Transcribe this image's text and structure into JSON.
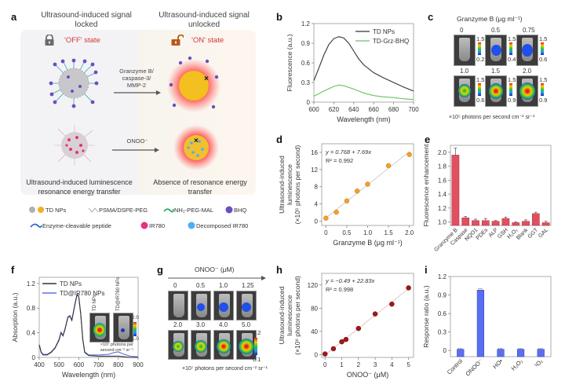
{
  "panel_labels": [
    "a",
    "b",
    "c",
    "d",
    "e",
    "f",
    "g",
    "h",
    "i"
  ],
  "panel_a": {
    "head_left": "Ultrasound-induced signal locked",
    "head_right": "Ultrasound-induced signal unlocked",
    "off_state": "'OFF' state",
    "on_state": "'ON' state",
    "arrow1_label": "Granzyme B/ caspase-3/ MMP-2",
    "arrow2_label": "ONOO⁻",
    "caption_left": "Ultrasound-induced luminescence resonance energy transfer",
    "caption_right": "Absence of resonance energy transfer",
    "legend": [
      {
        "icon": "td-np-icon",
        "label": "TD NPs"
      },
      {
        "icon": "psma-icon",
        "label": "PSMA/DSPE-PEG"
      },
      {
        "icon": "nh2-peg-icon",
        "label": "NH₂-PEG-MAL"
      },
      {
        "icon": "bhq-icon",
        "label": "BHQ"
      },
      {
        "icon": "peptide-icon",
        "label": "Enzyme-cleavable peptide"
      },
      {
        "icon": "ir780-icon",
        "label": "IR780"
      },
      {
        "icon": "decomposed-ir780-icon",
        "label": "Decomposed IR780"
      }
    ],
    "colors": {
      "state": "#d0393b",
      "td_gray": "#b0b0b0",
      "td_gold": "#f0b020",
      "bhq": "#6a4fc0",
      "ir780": "#e83080",
      "decomposed": "#4ab0f0"
    }
  },
  "panel_c": {
    "title": "Granzyme B (μg ml⁻¹)",
    "tubes": [
      {
        "conc": "0",
        "max": "1.5",
        "min": "0.2",
        "signal": 0
      },
      {
        "conc": "0.5",
        "max": "1.5",
        "min": "0.4",
        "signal": 0.3
      },
      {
        "conc": "0.75",
        "max": "1.5",
        "min": "0.6",
        "signal": 0.45
      },
      {
        "conc": "1.0",
        "max": "1.5",
        "min": "0.6",
        "signal": 0.55
      },
      {
        "conc": "1.5",
        "max": "1.5",
        "min": "0.9",
        "signal": 0.75
      },
      {
        "conc": "2.0",
        "max": "1.5",
        "min": "0.9",
        "signal": 1.0
      }
    ],
    "unit": "×10⁵ photons per second cm⁻² sr⁻¹"
  },
  "panel_g": {
    "title": "ONOO⁻ (μM)",
    "tubes": [
      {
        "conc": "0",
        "signal": 0
      },
      {
        "conc": "0.5",
        "signal": 0.2
      },
      {
        "conc": "1.0",
        "signal": 0.35
      },
      {
        "conc": "1.25",
        "signal": 0.4
      },
      {
        "conc": "2.0",
        "signal": 0.55
      },
      {
        "conc": "3.0",
        "signal": 0.7
      },
      {
        "conc": "4.0",
        "signal": 0.85
      },
      {
        "conc": "5.0",
        "signal": 1.0
      }
    ],
    "scale_max": "1.2",
    "scale_min": "0.1",
    "unit": "×10⁷ photons per second cm⁻² sr⁻¹"
  },
  "chart_data": [
    {
      "id": "b",
      "type": "line",
      "title": "",
      "xlabel": "Wavelength (nm)",
      "ylabel": "Fluorescence (a.u.)",
      "xlim": [
        600,
        700
      ],
      "ylim": [
        0,
        1.2
      ],
      "xticks": [
        600,
        620,
        640,
        660,
        680,
        700
      ],
      "yticks": [
        0,
        0.3,
        0.6,
        0.9,
        1.2
      ],
      "legend_position": "top-right",
      "series": [
        {
          "name": "TD NPs",
          "color": "#333333",
          "x": [
            600,
            605,
            610,
            615,
            620,
            625,
            630,
            635,
            640,
            645,
            650,
            660,
            670,
            680,
            690,
            700
          ],
          "y": [
            0.33,
            0.52,
            0.72,
            0.88,
            0.97,
            1.0,
            0.98,
            0.9,
            0.78,
            0.66,
            0.57,
            0.45,
            0.37,
            0.3,
            0.23,
            0.17
          ]
        },
        {
          "name": "TD-Grz-BHQ",
          "color": "#6cc060",
          "x": [
            600,
            610,
            620,
            625,
            630,
            640,
            650,
            660,
            670,
            680,
            690,
            700
          ],
          "y": [
            0.09,
            0.17,
            0.24,
            0.26,
            0.25,
            0.2,
            0.14,
            0.1,
            0.08,
            0.07,
            0.05,
            0.04
          ]
        }
      ]
    },
    {
      "id": "d",
      "type": "scatter",
      "xlabel": "Granzyme B (μg ml⁻¹)",
      "ylabel": "Ultrasound-induced luminescence (×10⁵ photons per second)",
      "xlim": [
        -0.1,
        2.1
      ],
      "ylim": [
        -1,
        18
      ],
      "xticks": [
        0,
        0.5,
        1.0,
        1.5,
        2.0
      ],
      "xtick_labels": [
        "0",
        "0.5",
        "1.0",
        "1.5",
        "2.0"
      ],
      "yticks": [
        0,
        4,
        8,
        12,
        16
      ],
      "annotation_eq": "y = 0.768 + 7.69x",
      "annotation_r2": "R² = 0.992",
      "fit": {
        "intercept": 0.768,
        "slope": 7.69
      },
      "color": "#f0a030",
      "x": [
        0,
        0.25,
        0.5,
        0.75,
        1.0,
        1.5,
        2.0
      ],
      "y": [
        0.7,
        2.1,
        4.7,
        7.0,
        8.6,
        12.9,
        15.5
      ]
    },
    {
      "id": "e",
      "type": "bar",
      "ylabel": "Fluorescence enhancement",
      "ylim": [
        0.95,
        2.1
      ],
      "yticks": [
        1.0,
        1.2,
        1.4,
        1.6,
        1.8,
        2.0
      ],
      "ytick_labels": [
        "1.0",
        "1.2",
        "1.4",
        "1.6",
        "1.8",
        "2.0"
      ],
      "color": "#e05060",
      "categories": [
        "Granzyme B",
        "Caspase",
        "NQO1",
        "PDEs",
        "ALP",
        "GSH",
        "H₂O₂",
        "Blank",
        "GGT",
        "GAL"
      ],
      "values": [
        1.96,
        1.06,
        1.02,
        1.02,
        1.01,
        1.05,
        0.99,
        1.01,
        1.12,
        0.99
      ],
      "errors": [
        0.1,
        0.02,
        0.02,
        0.03,
        0.01,
        0.02,
        0.01,
        0.02,
        0.02,
        0.02
      ]
    },
    {
      "id": "f",
      "type": "line",
      "xlabel": "Wavelength (nm)",
      "ylabel": "Absorption (a.u.)",
      "xlim": [
        400,
        900
      ],
      "ylim": [
        0,
        1.3
      ],
      "xticks": [
        400,
        500,
        600,
        700,
        800,
        900
      ],
      "yticks": [
        0,
        0.4,
        0.8,
        1.2
      ],
      "legend_position": "top-left",
      "inset": {
        "labels": [
          "TD NPs",
          "TD@IR780 NPs"
        ],
        "scale_max": "2.0",
        "scale_min": "1.0",
        "unit": "×10⁵ photons per second cm⁻² sr⁻¹"
      },
      "series": [
        {
          "name": "TD NPs",
          "color": "#333333",
          "x": [
            400,
            410,
            420,
            440,
            460,
            480,
            500,
            510,
            520,
            530,
            545,
            555,
            565,
            580,
            590,
            595,
            600,
            610,
            620,
            630,
            650,
            700,
            750,
            780,
            800,
            830,
            860,
            900
          ],
          "y": [
            0.2,
            0.08,
            0.04,
            0.04,
            0.08,
            0.15,
            0.28,
            0.4,
            0.35,
            0.45,
            0.65,
            0.67,
            0.6,
            0.85,
            1.0,
            1.02,
            0.98,
            0.7,
            0.3,
            0.08,
            0.03,
            0.02,
            0.02,
            0.02,
            0.02,
            0.01,
            0.0,
            0.0
          ]
        },
        {
          "name": "TD@IR780 NPs",
          "color": "#6070e0",
          "x": [
            400,
            410,
            420,
            440,
            460,
            480,
            500,
            510,
            520,
            530,
            545,
            555,
            565,
            580,
            590,
            595,
            600,
            610,
            620,
            630,
            650,
            700,
            750,
            780,
            800,
            830,
            860,
            900
          ],
          "y": [
            0.21,
            0.09,
            0.05,
            0.05,
            0.09,
            0.16,
            0.29,
            0.41,
            0.36,
            0.46,
            0.66,
            0.68,
            0.61,
            0.86,
            1.01,
            1.02,
            0.98,
            0.7,
            0.3,
            0.09,
            0.04,
            0.04,
            0.05,
            0.08,
            0.09,
            0.05,
            0.02,
            0.01
          ]
        }
      ]
    },
    {
      "id": "h",
      "type": "scatter",
      "xlabel": "ONOO⁻ (μM)",
      "ylabel": "Ultrasound-induced luminescence (×10⁶ photons per second)",
      "xlim": [
        -0.2,
        5.3
      ],
      "ylim": [
        -5,
        140
      ],
      "xticks": [
        0,
        1,
        2,
        3,
        4,
        5
      ],
      "yticks": [
        0,
        40,
        80,
        120
      ],
      "annotation_eq": "y = −0.49 + 22.83x",
      "annotation_r2": "R² = 0.998",
      "fit": {
        "intercept": -0.49,
        "slope": 22.83
      },
      "color": "#a01820",
      "x": [
        0,
        0.5,
        1.0,
        1.25,
        2.0,
        3.0,
        4.0,
        5.0
      ],
      "y": [
        1,
        10,
        22,
        26,
        45,
        70,
        87,
        115
      ]
    },
    {
      "id": "i",
      "type": "bar",
      "ylabel": "Response ratio (a.u.)",
      "ylim": [
        -0.1,
        1.2
      ],
      "yticks": [
        0,
        0.3,
        0.6,
        0.9,
        1.2
      ],
      "color": "#5a6ff0",
      "categories": [
        "Control",
        "ONOO⁻",
        "HO•",
        "H₂O₂",
        "¹O₂"
      ],
      "values": [
        0.02,
        0.98,
        0.02,
        0.02,
        0.02
      ],
      "errors": [
        0.01,
        0.02,
        0.01,
        0.01,
        0.01
      ]
    }
  ]
}
